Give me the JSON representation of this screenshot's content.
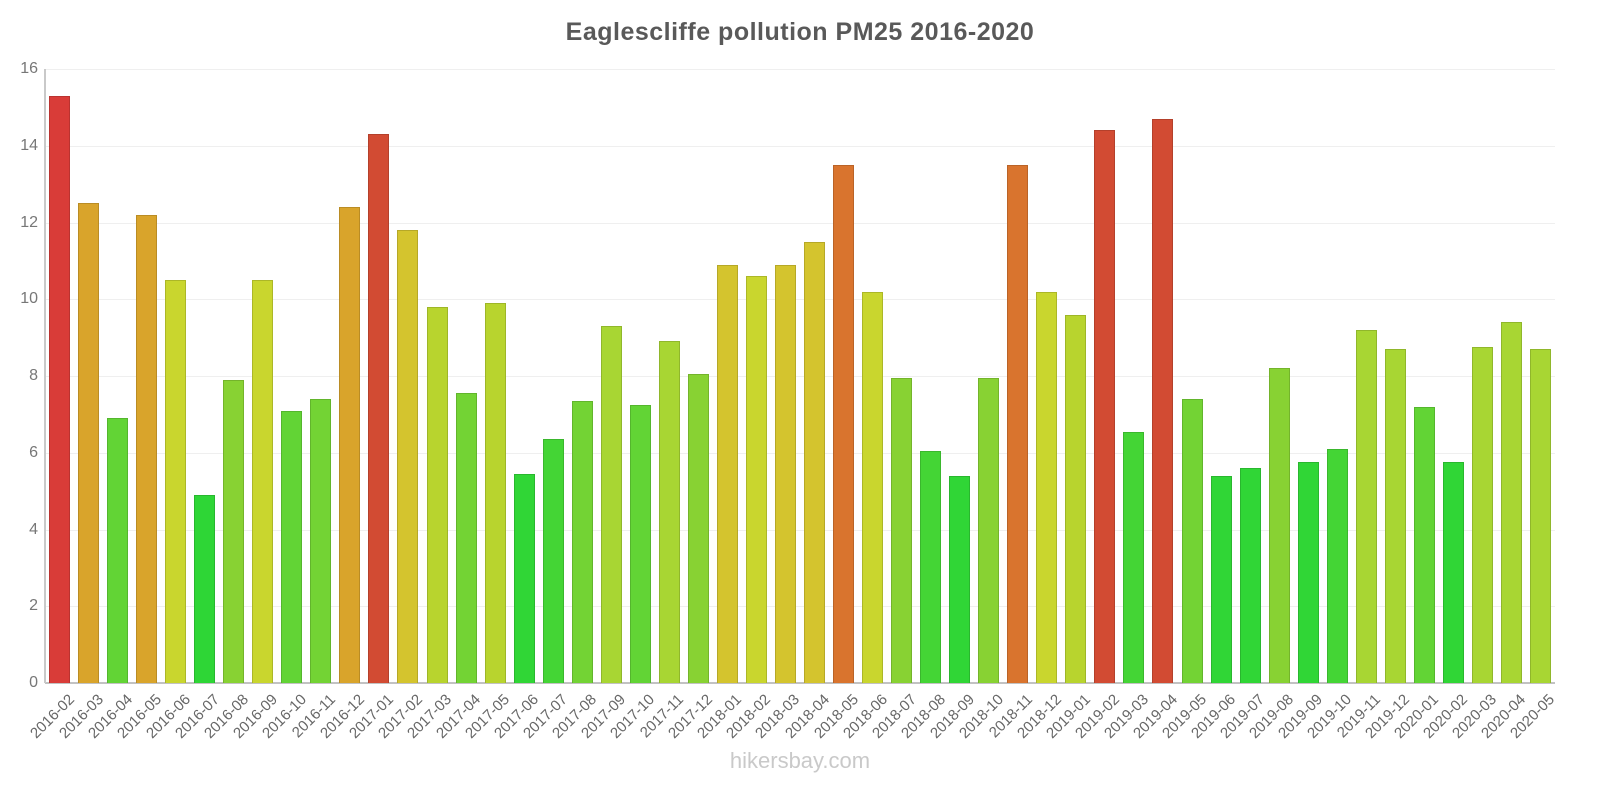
{
  "chart_data": {
    "type": "bar",
    "title": "Eaglescliffe pollution PM25 2016-2020",
    "watermark": "hikersbay.com",
    "xlabel": "",
    "ylabel": "",
    "ylim": [
      0,
      16
    ],
    "yticks": [
      0,
      2,
      4,
      6,
      8,
      10,
      12,
      14,
      16
    ],
    "grid": true,
    "legend": false,
    "categories": [
      "2016-02",
      "2016-03",
      "2016-04",
      "2016-05",
      "2016-06",
      "2016-07",
      "2016-08",
      "2016-09",
      "2016-10",
      "2016-11",
      "2016-12",
      "2017-01",
      "2017-02",
      "2017-03",
      "2017-04",
      "2017-05",
      "2017-06",
      "2017-07",
      "2017-08",
      "2017-09",
      "2017-10",
      "2017-11",
      "2017-12",
      "2018-01",
      "2018-02",
      "2018-03",
      "2018-04",
      "2018-05",
      "2018-06",
      "2018-07",
      "2018-08",
      "2018-09",
      "2018-10",
      "2018-11",
      "2018-12",
      "2019-01",
      "2019-02",
      "2019-03",
      "2019-04",
      "2019-05",
      "2019-06",
      "2019-07",
      "2019-08",
      "2019-09",
      "2019-10",
      "2019-11",
      "2019-12",
      "2020-01",
      "2020-02",
      "2020-03",
      "2020-04",
      "2020-05"
    ],
    "values": [
      15.3,
      12.5,
      6.9,
      12.2,
      10.5,
      4.9,
      7.9,
      10.5,
      7.1,
      7.4,
      12.4,
      14.3,
      11.8,
      9.8,
      7.55,
      9.9,
      5.45,
      6.35,
      7.35,
      9.3,
      7.25,
      8.9,
      8.05,
      10.9,
      10.6,
      10.9,
      11.5,
      13.5,
      10.2,
      7.95,
      6.05,
      5.4,
      7.95,
      13.5,
      10.2,
      9.6,
      14.4,
      6.55,
      14.7,
      7.4,
      5.4,
      5.6,
      8.2,
      5.75,
      6.1,
      9.2,
      8.7,
      7.2,
      5.75,
      8.75,
      9.4,
      8.7
    ],
    "colors": [
      "#d93c38",
      "#d9a42b",
      "#62d435",
      "#d9a42b",
      "#c9d62e",
      "#2ed636",
      "#88d233",
      "#c9d62e",
      "#62d435",
      "#73d334",
      "#d9a42b",
      "#d24b33",
      "#d4c42e",
      "#b8d42e",
      "#73d334",
      "#b8d42e",
      "#30d636",
      "#44d535",
      "#73d334",
      "#a8d633",
      "#62d435",
      "#a8d633",
      "#88d233",
      "#d4c42e",
      "#c9d62e",
      "#d4c42e",
      "#d4c42e",
      "#d9742e",
      "#c9d62e",
      "#88d233",
      "#44d535",
      "#30d636",
      "#88d233",
      "#d9742e",
      "#c9d62e",
      "#b8d42e",
      "#d24b33",
      "#44d535",
      "#d24b33",
      "#73d334",
      "#30d636",
      "#30d636",
      "#88d233",
      "#30d636",
      "#44d535",
      "#a8d633",
      "#a8d633",
      "#62d435",
      "#30d636",
      "#a8d633",
      "#a8d633",
      "#a8d633"
    ],
    "title_color": "#595959",
    "tick_color": "#666666",
    "grid_color": "#efefef",
    "axis_color": "#c9c9c9",
    "watermark_color": "#c9c9c9"
  }
}
